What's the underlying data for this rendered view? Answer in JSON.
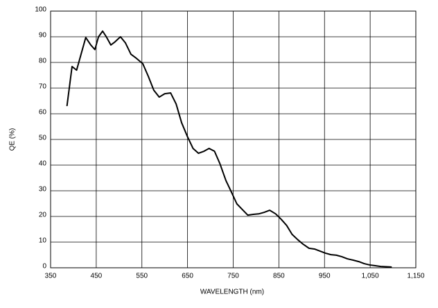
{
  "chart_data": {
    "type": "line",
    "xlabel": "WAVELENGTH (nm)",
    "ylabel": "QE (%)",
    "x": [
      386,
      397,
      407,
      418,
      427,
      438,
      447,
      455,
      464,
      472,
      482,
      491,
      503,
      514,
      526,
      538,
      552,
      564,
      576,
      588,
      600,
      613,
      625,
      637,
      650,
      662,
      674,
      686,
      697,
      709,
      721,
      734,
      746,
      758,
      770,
      782,
      794,
      806,
      818,
      830,
      843,
      855,
      867,
      879,
      891,
      903,
      916,
      928,
      940,
      952,
      964,
      976,
      988,
      1000,
      1012,
      1025,
      1037,
      1049,
      1061,
      1073,
      1096
    ],
    "series": [
      {
        "name": "QE",
        "color": "#000000",
        "values": [
          63.2,
          78.4,
          77,
          84,
          89.7,
          86.8,
          85,
          90,
          92.2,
          90,
          86.8,
          88,
          90,
          87.6,
          83.2,
          81.6,
          79.5,
          74.6,
          69.2,
          66.5,
          67.8,
          68.1,
          63.8,
          56.5,
          51,
          46.5,
          44.6,
          45.4,
          46.5,
          45.4,
          40.5,
          34,
          29.5,
          24.9,
          22.7,
          20.5,
          20.8,
          21,
          21.6,
          22.4,
          21,
          18.9,
          16.5,
          13,
          11,
          9.2,
          7.6,
          7.3,
          6.5,
          5.7,
          5.1,
          4.9,
          4.3,
          3.5,
          3,
          2.4,
          1.6,
          1.1,
          0.8,
          0.5,
          0.3
        ]
      }
    ],
    "xlim": [
      350,
      1150
    ],
    "xticks": [
      350,
      450,
      550,
      650,
      750,
      850,
      950,
      {
        "value": 1050,
        "label": "1,050"
      },
      {
        "value": 1150,
        "label": "1,150"
      }
    ],
    "ylim": [
      0,
      100
    ],
    "yticks": [
      0,
      10,
      20,
      30,
      40,
      50,
      60,
      70,
      80,
      90,
      100
    ],
    "grid": true
  }
}
